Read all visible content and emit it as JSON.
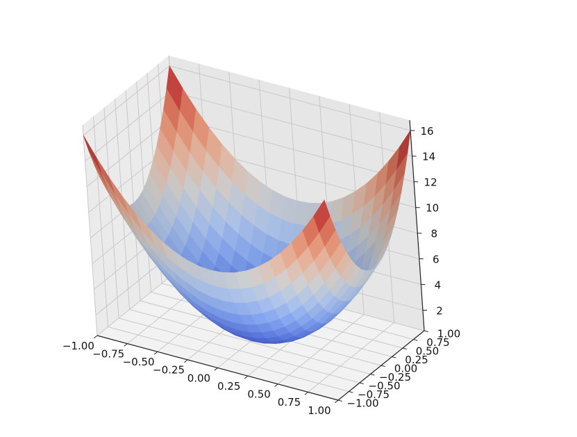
{
  "chart_data": {
    "type": "surface",
    "title": "",
    "xlabel": "",
    "ylabel": "",
    "zlabel": "",
    "colormap": "coolwarm",
    "colormap_low": "#3b4cc0",
    "colormap_mid": "#dddddd",
    "colormap_high": "#b40426",
    "grid": true,
    "pane_color": "#f2f2f2",
    "grid_color": "#c8c8c8",
    "xlim": [
      -1,
      1
    ],
    "ylim": [
      -1,
      1
    ],
    "zlim": [
      0.4,
      16.8
    ],
    "x_ticks": [
      "−1.00",
      "−0.75",
      "−0.50",
      "−0.25",
      "0.00",
      "0.25",
      "0.50",
      "0.75",
      "1.00"
    ],
    "y_ticks": [
      "−1.00",
      "−0.75",
      "−0.50",
      "−0.25",
      "0.00",
      "0.25",
      "0.50",
      "0.75",
      "1.00"
    ],
    "z_ticks": [
      "2",
      "4",
      "6",
      "8",
      "10",
      "12",
      "14",
      "16"
    ],
    "x_tick_values": [
      -1,
      -0.75,
      -0.5,
      -0.25,
      0,
      0.25,
      0.5,
      0.75,
      1
    ],
    "y_tick_values": [
      -1,
      -0.75,
      -0.5,
      -0.25,
      0,
      0.25,
      0.5,
      0.75,
      1
    ],
    "z_tick_values": [
      2,
      4,
      6,
      8,
      10,
      12,
      14,
      16
    ],
    "surface": {
      "function": "z = 8*(x^2 + y^2)",
      "x_range": [
        -1,
        1
      ],
      "y_range": [
        -1,
        1
      ],
      "grid_points": 21,
      "z_min": 0,
      "z_max": 16
    }
  }
}
